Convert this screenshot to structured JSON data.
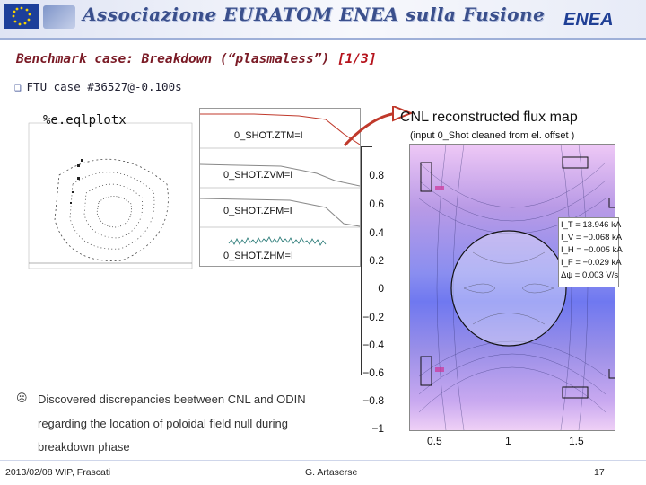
{
  "header": {
    "title": "Associazione EURATOM ENEA sulla Fusione",
    "logo": "ENEA"
  },
  "slide": {
    "title": "Benchmark case: Breakdown (“plasmaless”)",
    "title_index": "[1/3]",
    "bullet": "FTU case #36527@-0.100s"
  },
  "left_panel": {
    "eq_title": "%e.eqlplotx"
  },
  "traces": {
    "labels": [
      "0_SHOT.ZTM=I",
      "0_SHOT.ZVM=I",
      "0_SHOT.ZFM=I",
      "0_SHOT.ZHM=I"
    ]
  },
  "flux_map": {
    "title": "CNL reconstructed flux map",
    "subtitle": "(input 0_Shot cleaned from el. offset )",
    "y_ticks": [
      "0.8",
      "0.6",
      "0.4",
      "0.2",
      "0",
      "−0.2",
      "−0.4",
      "−0.6",
      "−0.8",
      "−1"
    ],
    "x_ticks": [
      "0.5",
      "1",
      "1.5"
    ],
    "legend": [
      "I_T = 13.946 kA",
      "I_V = −0.068 kA",
      "I_H = −0.005 kA",
      "I_F = −0.029 kA",
      "Δψ = 0.003  V/s"
    ]
  },
  "notes": {
    "line1": "Discovered discrepancies beetween CNL and ODIN",
    "line2": "regarding the location of poloidal field null during",
    "line3": "breakdown phase"
  },
  "footer": {
    "date": "2013/02/08  WIP, Frascati",
    "author": "G. Artaserse",
    "page": "17"
  },
  "colors": {
    "title": "#7a1a25",
    "accent": "#b5121b",
    "banner": "#3a4f8c"
  }
}
